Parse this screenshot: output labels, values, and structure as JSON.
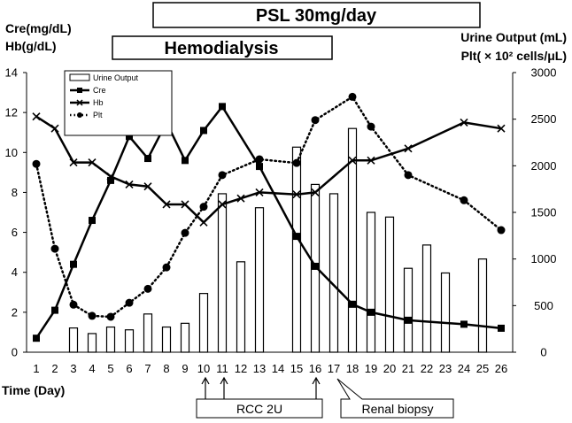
{
  "banners": {
    "psl": "PSL 30mg/day",
    "hemodialysis": "Hemodialysis"
  },
  "axes": {
    "left_label_line1": "Cre(mg/dL)",
    "left_label_line2": "Hb(g/dL)",
    "right_label_line1": "Urine Output (mL)",
    "right_label_line2": "Plt( × 10² cells/μL)",
    "x_label": "Time   (Day)",
    "left_ticks": [
      "0",
      "2",
      "4",
      "6",
      "8",
      "10",
      "12",
      "14"
    ],
    "right_ticks": [
      "0",
      "500",
      "1000",
      "1500",
      "2000",
      "2500",
      "3000"
    ]
  },
  "annotations": {
    "rcc": "RCC 2U",
    "biopsy": "Renal biopsy"
  },
  "legend": {
    "urine": "Urine Output",
    "cre": "Cre",
    "hb": "Hb",
    "plt": "Plt"
  },
  "chart_data": {
    "type": "bar+line",
    "x": [
      "1",
      "2",
      "3",
      "4",
      "5",
      "6",
      "7",
      "8",
      "9",
      "10",
      "11",
      "12",
      "13",
      "14",
      "15",
      "16",
      "17",
      "18",
      "19",
      "20",
      "21",
      "22",
      "23",
      "24",
      "25",
      "26"
    ],
    "xlabel": "Time   (Day)",
    "ylabel_left": "Cre(mg/dL) Hb(g/dL)",
    "ylabel_right": "Urine Output (mL) Plt( × 10² cells/μL)",
    "ylim_left": [
      0,
      14
    ],
    "ylim_right": [
      0,
      3000
    ],
    "series": [
      {
        "name": "Urine Output",
        "kind": "bar",
        "axis": "right",
        "values": [
          null,
          null,
          260,
          200,
          270,
          240,
          410,
          270,
          310,
          630,
          1700,
          970,
          1550,
          null,
          2200,
          1800,
          1700,
          2400,
          1500,
          1450,
          900,
          1150,
          850,
          null,
          1000,
          null
        ]
      },
      {
        "name": "Cre",
        "kind": "line",
        "axis": "left",
        "marker": "square",
        "values": [
          0.7,
          2.1,
          4.4,
          6.6,
          8.6,
          10.8,
          9.7,
          11.5,
          9.6,
          11.1,
          12.3,
          null,
          9.3,
          null,
          5.8,
          4.3,
          null,
          2.4,
          2.0,
          null,
          1.6,
          null,
          null,
          1.4,
          null,
          1.2
        ]
      },
      {
        "name": "Hb",
        "kind": "line",
        "axis": "left",
        "marker": "x",
        "values": [
          11.8,
          11.2,
          9.5,
          9.5,
          8.8,
          8.4,
          8.3,
          7.4,
          7.4,
          6.5,
          7.4,
          7.7,
          8.0,
          null,
          7.9,
          8.0,
          null,
          9.6,
          9.6,
          null,
          10.2,
          null,
          null,
          11.5,
          null,
          11.2
        ]
      },
      {
        "name": "Plt",
        "kind": "line",
        "axis": "right",
        "style": "dotted",
        "marker": "circle",
        "values": [
          2020,
          1110,
          510,
          390,
          380,
          530,
          680,
          910,
          1280,
          1560,
          1900,
          null,
          2070,
          null,
          2030,
          2490,
          null,
          2740,
          2420,
          null,
          1900,
          null,
          null,
          1630,
          null,
          1310
        ]
      }
    ],
    "annotations": [
      "RCC 2U on day 10, 11, 16",
      "Renal biopsy on day 17"
    ],
    "banners": [
      "PSL 30mg/day (top)",
      "Hemodialysis (days ~5–16)"
    ],
    "grid": false,
    "legend_position": "top-left"
  }
}
